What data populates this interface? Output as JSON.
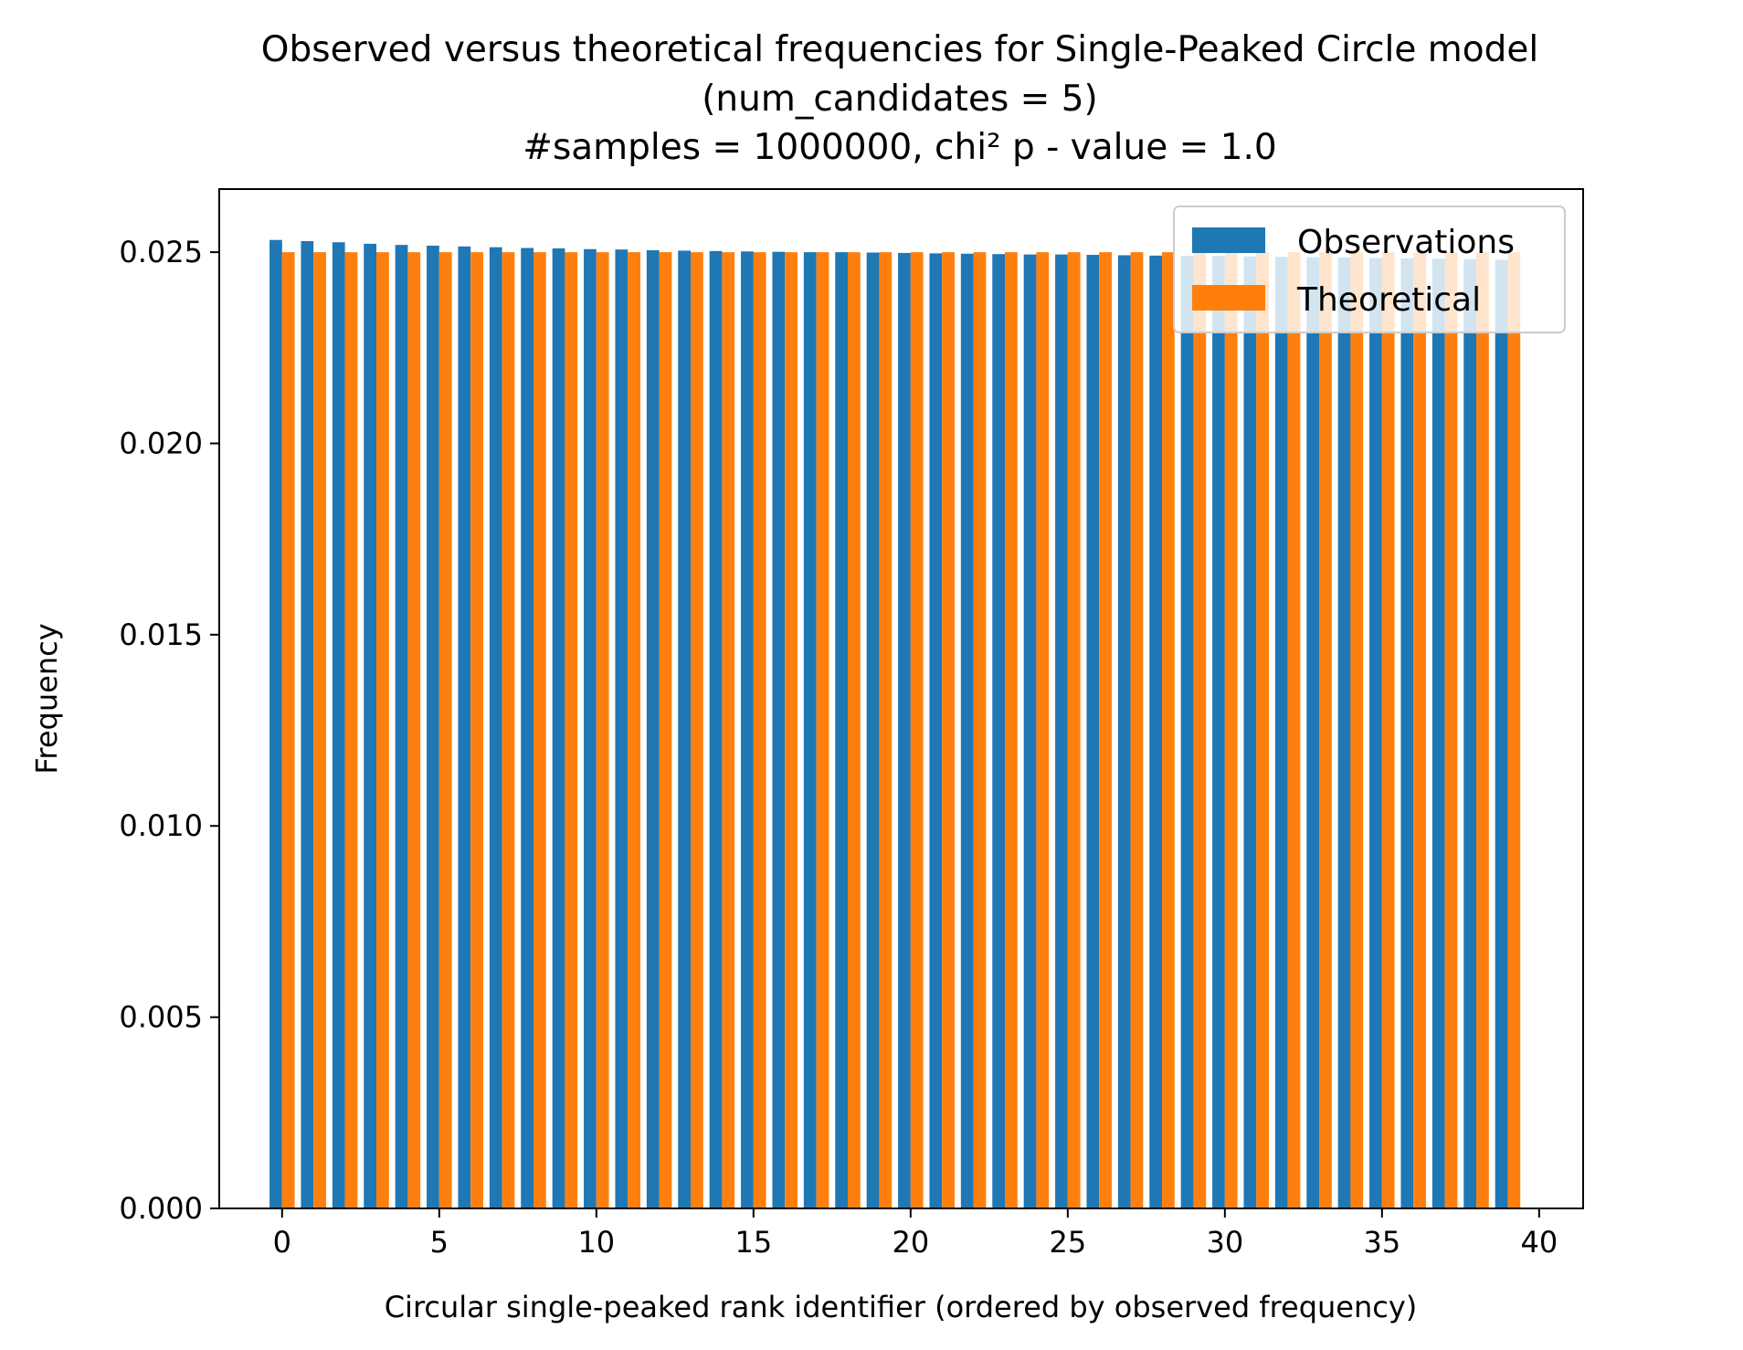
{
  "chart_data": {
    "type": "bar",
    "title_lines": [
      "Observed versus theoretical frequencies for Single-Peaked Circle model",
      "(num_candidates = 5)",
      "#samples = 1000000, chi² p - value = 1.0"
    ],
    "xlabel": "Circular single-peaked rank identifier (ordered by observed frequency)",
    "ylabel": "Frequency",
    "categories": [
      0,
      1,
      2,
      3,
      4,
      5,
      6,
      7,
      8,
      9,
      10,
      11,
      12,
      13,
      14,
      15,
      16,
      17,
      18,
      19,
      20,
      21,
      22,
      23,
      24,
      25,
      26,
      27,
      28,
      29,
      30,
      31,
      32,
      33,
      34,
      35,
      36,
      37,
      38,
      39
    ],
    "series": [
      {
        "name": "Observations",
        "color": "#1f77b4",
        "values": [
          0.02532,
          0.02529,
          0.02526,
          0.02522,
          0.02519,
          0.02517,
          0.02515,
          0.02513,
          0.02511,
          0.0251,
          0.02508,
          0.02507,
          0.02505,
          0.02504,
          0.02503,
          0.02502,
          0.02501,
          0.025,
          0.025,
          0.02499,
          0.02498,
          0.02497,
          0.02496,
          0.02495,
          0.02494,
          0.02494,
          0.02493,
          0.02492,
          0.02491,
          0.0249,
          0.0249,
          0.02489,
          0.02488,
          0.02487,
          0.02486,
          0.02485,
          0.02484,
          0.02483,
          0.02482,
          0.0248
        ]
      },
      {
        "name": "Theoretical",
        "color": "#ff7f0e",
        "values": [
          0.025,
          0.025,
          0.025,
          0.025,
          0.025,
          0.025,
          0.025,
          0.025,
          0.025,
          0.025,
          0.025,
          0.025,
          0.025,
          0.025,
          0.025,
          0.025,
          0.025,
          0.025,
          0.025,
          0.025,
          0.025,
          0.025,
          0.025,
          0.025,
          0.025,
          0.025,
          0.025,
          0.025,
          0.025,
          0.025,
          0.025,
          0.025,
          0.025,
          0.025,
          0.025,
          0.025,
          0.025,
          0.025,
          0.025,
          0.025
        ]
      }
    ],
    "xlim": [
      -2.0,
      41.4
    ],
    "ylim": [
      0.0,
      0.02665
    ],
    "xticks": [
      0,
      5,
      10,
      15,
      20,
      25,
      30,
      35,
      40
    ],
    "xtick_labels": [
      "0",
      "5",
      "10",
      "15",
      "20",
      "25",
      "30",
      "35",
      "40"
    ],
    "yticks": [
      0.0,
      0.005,
      0.01,
      0.015,
      0.02,
      0.025
    ],
    "ytick_labels": [
      "0.000",
      "0.005",
      "0.010",
      "0.015",
      "0.020",
      "0.025"
    ],
    "grid": false,
    "legend_position": "top-right"
  }
}
